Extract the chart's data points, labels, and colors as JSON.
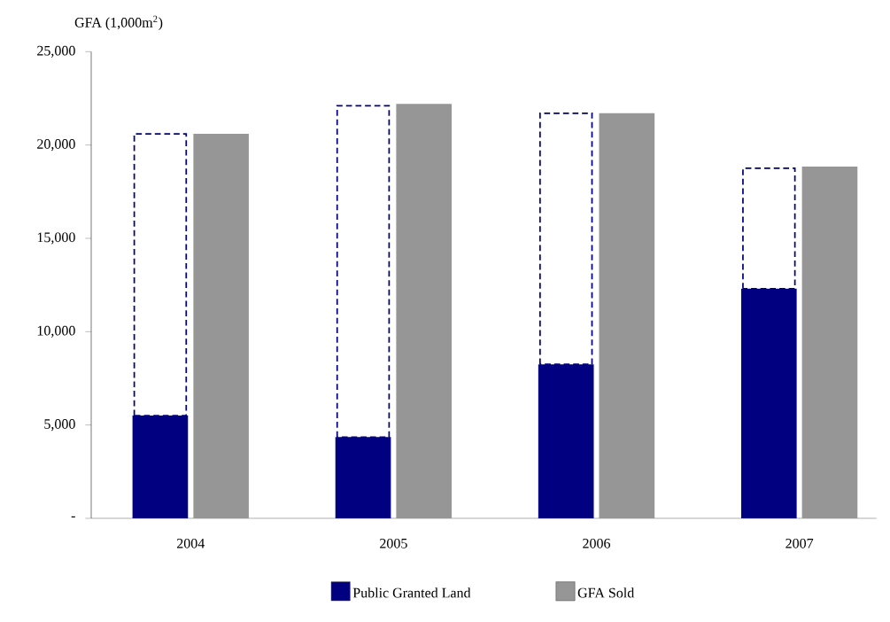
{
  "chart_data": {
    "type": "bar",
    "ylabel": "GFA (1,000m$^{2}$)",
    "categories": [
      "2004",
      "2005",
      "2006",
      "2007"
    ],
    "series": [
      {
        "name": "Public Granted Land",
        "color": "#000080",
        "values": [
          5500,
          4350,
          8250,
          12300
        ]
      },
      {
        "color": "#000080",
        "line_style": "dashed",
        "base": [
          5500,
          4350,
          8250,
          12300
        ],
        "values": [
          15100,
          17750,
          13450,
          6450
        ]
      },
      {
        "name": "GFA Sold",
        "color": "#969696",
        "values": [
          20600,
          22200,
          21700,
          18850
        ]
      }
    ],
    "ylim": [
      0,
      25000
    ],
    "yticks": [
      {
        "value": 0,
        "label": "-"
      },
      {
        "value": 5000,
        "label": "5,000"
      },
      {
        "value": 10000,
        "label": "10,000"
      },
      {
        "value": 15000,
        "label": "15,000"
      },
      {
        "value": 20000,
        "label": "20,000"
      },
      {
        "value": 25000,
        "label": "25,000"
      }
    ],
    "legend": "bottom"
  }
}
